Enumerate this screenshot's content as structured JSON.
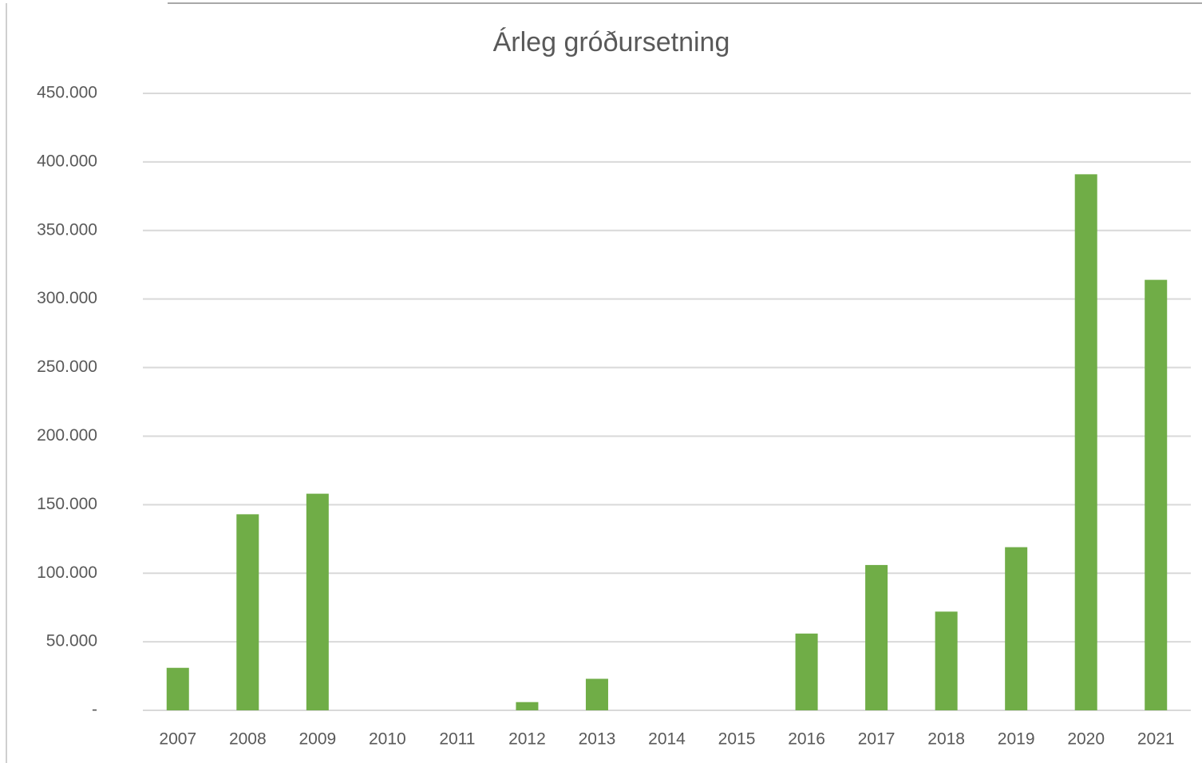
{
  "chart_data": {
    "type": "bar",
    "title": "Árleg gróðursetning",
    "categories": [
      "2007",
      "2008",
      "2009",
      "2010",
      "2011",
      "2012",
      "2013",
      "2014",
      "2015",
      "2016",
      "2017",
      "2018",
      "2019",
      "2020",
      "2021"
    ],
    "values": [
      31000,
      143000,
      158000,
      0,
      0,
      6000,
      23000,
      0,
      0,
      56000,
      106000,
      72000,
      119000,
      391000,
      314000
    ],
    "color": "#70ad47",
    "ylim": [
      0,
      450000
    ],
    "yticks": [
      {
        "value": 0,
        "label": "-"
      },
      {
        "value": 50000,
        "label": "50.000"
      },
      {
        "value": 100000,
        "label": "100.000"
      },
      {
        "value": 150000,
        "label": "150.000"
      },
      {
        "value": 200000,
        "label": "200.000"
      },
      {
        "value": 250000,
        "label": "250.000"
      },
      {
        "value": 300000,
        "label": "300.000"
      },
      {
        "value": 350000,
        "label": "350.000"
      },
      {
        "value": 400000,
        "label": "400.000"
      },
      {
        "value": 450000,
        "label": "450.000"
      }
    ],
    "grid": true
  }
}
